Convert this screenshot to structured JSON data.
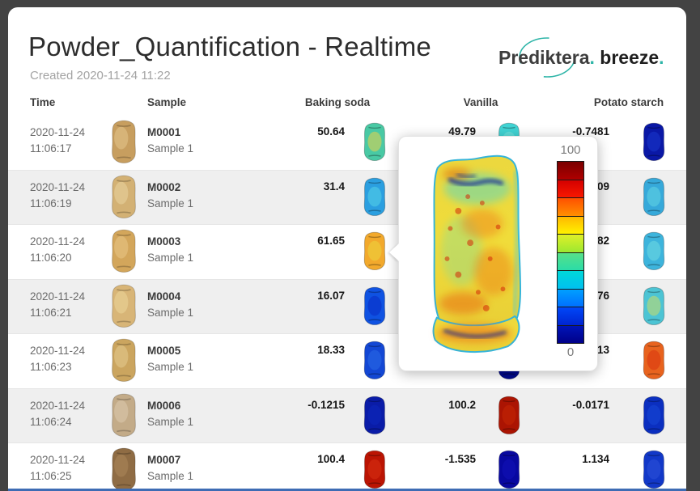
{
  "window": {
    "title": "Powder_Quantification - Realtime",
    "subtitle": "Created 2020-11-24 11:22"
  },
  "logo": {
    "part1": "Prediktera",
    "dot1": ".",
    "part2": " breeze",
    "dot2": ".",
    "accent_color": "#2eb5a8"
  },
  "columns": {
    "time": "Time",
    "sample": "Sample",
    "baking": "Baking soda",
    "vanilla": "Vanilla",
    "potato": "Potato starch"
  },
  "table": {
    "stripe_color": "#efefef",
    "rows": [
      {
        "date": "2020-11-24",
        "time": "11:06:17",
        "id": "M0001",
        "name": "Sample 1",
        "photo": {
          "c1": "#c79e5f",
          "c2": "#e8c992"
        },
        "baking": {
          "value": "50.64",
          "c1": "#49c9a4",
          "c2": "#e8d24a"
        },
        "vanilla": {
          "value": "49.79",
          "c1": "#41d4d4",
          "c2": "#7ae6de"
        },
        "potato": {
          "value": "-0.7481",
          "c1": "#0a18a6",
          "c2": "#1a38cc"
        }
      },
      {
        "date": "2020-11-24",
        "time": "11:06:19",
        "id": "M0002",
        "name": "Sample 1",
        "photo": {
          "c1": "#d3b174",
          "c2": "#ecd8a4"
        },
        "baking": {
          "value": "31.4",
          "c1": "#2b9fe0",
          "c2": "#55d2e8"
        },
        "vanilla": {
          "value": "",
          "c1": null,
          "c2": null
        },
        "potato": {
          "value": "34.09",
          "c1": "#36a9da",
          "c2": "#62d6e4"
        }
      },
      {
        "date": "2020-11-24",
        "time": "11:06:20",
        "id": "M0003",
        "name": "Sample 1",
        "photo": {
          "c1": "#d3a65b",
          "c2": "#ecc98c"
        },
        "baking": {
          "value": "61.65",
          "c1": "#f2a92c",
          "c2": "#ecd63e"
        },
        "vanilla": {
          "value": "",
          "c1": null,
          "c2": null
        },
        "potato": {
          "value": "38.82",
          "c1": "#3db4dc",
          "c2": "#70dbe2"
        }
      },
      {
        "date": "2020-11-24",
        "time": "11:06:21",
        "id": "M0004",
        "name": "Sample 1",
        "photo": {
          "c1": "#d8b577",
          "c2": "#eeda9e"
        },
        "baking": {
          "value": "16.07",
          "c1": "#0f52e2",
          "c2": "#0a2cc4"
        },
        "vanilla": {
          "value": "",
          "c1": null,
          "c2": null
        },
        "potato": {
          "value": "50.76",
          "c1": "#4cc4d4",
          "c2": "#cbdd66"
        }
      },
      {
        "date": "2020-11-24",
        "time": "11:06:23",
        "id": "M0005",
        "name": "Sample 1",
        "photo": {
          "c1": "#cba55f",
          "c2": "#e7cf96"
        },
        "baking": {
          "value": "18.33",
          "c1": "#1347d4",
          "c2": "#2a6ae6"
        },
        "vanilla": {
          "value": "",
          "c1": "#000a8e",
          "c2": "#0a1cb2"
        },
        "potato": {
          "value": "84.13",
          "c1": "#e8631e",
          "c2": "#d8350e"
        }
      },
      {
        "date": "2020-11-24",
        "time": "11:06:24",
        "id": "M0006",
        "name": "Sample 1",
        "photo": {
          "c1": "#c3ab88",
          "c2": "#dfcdb2"
        },
        "baking": {
          "value": "-0.1215",
          "c1": "#0a1ca8",
          "c2": "#0c28bc"
        },
        "vanilla": {
          "value": "100.2",
          "c1": "#ab1402",
          "c2": "#c52706"
        },
        "potato": {
          "value": "-0.0171",
          "c1": "#0b2fc0",
          "c2": "#1747d6"
        }
      },
      {
        "date": "2020-11-24",
        "time": "11:06:25",
        "id": "M0007",
        "name": "Sample 1",
        "photo": {
          "c1": "#8f6c44",
          "c2": "#b08a5c"
        },
        "baking": {
          "value": "100.4",
          "c1": "#bb1403",
          "c2": "#d93012"
        },
        "vanilla": {
          "value": "-1.535",
          "c1": "#0808a0",
          "c2": "#1212b8"
        },
        "potato": {
          "value": "1.134",
          "c1": "#1238c8",
          "c2": "#2b50d8"
        }
      }
    ]
  },
  "popup": {
    "max_label": "100",
    "min_label": "0",
    "colorbar": [
      [
        "#7a0000",
        "#b00000"
      ],
      [
        "#d40000",
        "#f81800"
      ],
      [
        "#ff5000",
        "#ff9000"
      ],
      [
        "#ffb800",
        "#fff200"
      ],
      [
        "#e0f028",
        "#9ce830"
      ],
      [
        "#58e088",
        "#2adca8"
      ],
      [
        "#00d8d8",
        "#00c0f0"
      ],
      [
        "#00a0ff",
        "#0070ff"
      ],
      [
        "#0048f8",
        "#0024d0"
      ],
      [
        "#0014b8",
        "#000088"
      ]
    ]
  }
}
